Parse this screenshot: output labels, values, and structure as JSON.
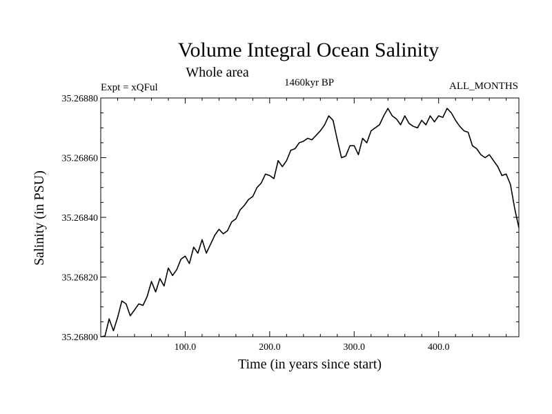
{
  "chart_data": {
    "type": "line",
    "title": "Volume Integral Ocean Salinity",
    "subtitle": "Whole area",
    "annotations": {
      "experiment": "Expt = xQFul",
      "period": "1460kyr BP",
      "months": "ALL_MONTHS"
    },
    "xlabel": "Time (in years since start)",
    "ylabel": "Salinity (in PSU)",
    "xlim": [
      0,
      495
    ],
    "ylim": [
      35.268,
      35.2688
    ],
    "xticks": [
      {
        "value": 100,
        "label": "100.0"
      },
      {
        "value": 200,
        "label": "200.0"
      },
      {
        "value": 300,
        "label": "300.0"
      },
      {
        "value": 400,
        "label": "400.0"
      }
    ],
    "yticks": [
      {
        "value": 35.268,
        "label": "35.26800"
      },
      {
        "value": 35.2682,
        "label": "35.26820"
      },
      {
        "value": 35.2684,
        "label": "35.26840"
      },
      {
        "value": 35.2686,
        "label": "35.26860"
      },
      {
        "value": 35.2688,
        "label": "35.26880"
      }
    ],
    "grid": false,
    "series": [
      {
        "name": "Salinity",
        "color": "#000000",
        "x": [
          0,
          5,
          10,
          15,
          20,
          25,
          30,
          35,
          40,
          45,
          50,
          55,
          60,
          65,
          70,
          75,
          80,
          85,
          90,
          95,
          100,
          105,
          110,
          115,
          120,
          125,
          130,
          135,
          140,
          145,
          150,
          155,
          160,
          165,
          170,
          175,
          180,
          185,
          190,
          195,
          200,
          205,
          210,
          215,
          220,
          225,
          230,
          235,
          240,
          245,
          250,
          255,
          260,
          265,
          270,
          275,
          280,
          285,
          290,
          295,
          300,
          305,
          310,
          315,
          320,
          325,
          330,
          335,
          340,
          345,
          350,
          355,
          360,
          365,
          370,
          375,
          380,
          385,
          390,
          395,
          400,
          405,
          410,
          415,
          420,
          425,
          430,
          435,
          440,
          445,
          450,
          455,
          460,
          465,
          470,
          475,
          480,
          485,
          490,
          495
        ],
        "values": [
          35.268,
          35.268002,
          35.26806,
          35.26802,
          35.268065,
          35.26812,
          35.26811,
          35.26807,
          35.26809,
          35.26811,
          35.268105,
          35.268135,
          35.268185,
          35.26815,
          35.268195,
          35.26817,
          35.26823,
          35.268205,
          35.268225,
          35.26826,
          35.26827,
          35.268245,
          35.2683,
          35.26828,
          35.268325,
          35.26828,
          35.26831,
          35.26834,
          35.26836,
          35.268345,
          35.268355,
          35.268385,
          35.268395,
          35.268425,
          35.26844,
          35.26846,
          35.26847,
          35.2685,
          35.268515,
          35.268545,
          35.26854,
          35.26853,
          35.26859,
          35.26857,
          35.26859,
          35.268625,
          35.26863,
          35.26865,
          35.268655,
          35.268665,
          35.26866,
          35.268675,
          35.26869,
          35.26871,
          35.26874,
          35.268725,
          35.26866,
          35.2686,
          35.268605,
          35.26864,
          35.26864,
          35.26861,
          35.268665,
          35.26865,
          35.26869,
          35.2687,
          35.26871,
          35.26874,
          35.268765,
          35.26874,
          35.26873,
          35.26871,
          35.26874,
          35.268715,
          35.268705,
          35.2687,
          35.268725,
          35.26871,
          35.26874,
          35.26872,
          35.26874,
          35.268735,
          35.268765,
          35.26875,
          35.268725,
          35.268705,
          35.26869,
          35.268685,
          35.26864,
          35.26863,
          35.26861,
          35.2686,
          35.26861,
          35.26859,
          35.26857,
          35.26854,
          35.268545,
          35.26851,
          35.26843,
          35.268365
        ]
      }
    ]
  }
}
